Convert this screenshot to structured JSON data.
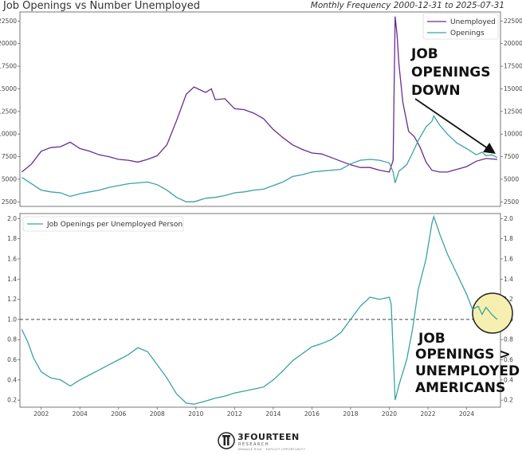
{
  "header": {
    "title": "Job Openings vs Number Unemployed",
    "subtitle": "Monthly Frequency 2000-12-31 to 2025-07-31"
  },
  "colors": {
    "unemployed": "#6b2c8e",
    "openings": "#3aa3a0",
    "ratio": "#3aa3a0",
    "highlight": "#f5f0b0",
    "highlight_stroke": "#222222"
  },
  "chart_data": [
    {
      "type": "line",
      "title": "Job Openings vs Number Unemployed",
      "xlim": [
        2000.9,
        2025.75
      ],
      "ylim": [
        2000,
        23500
      ],
      "yticks": [
        2500,
        5000,
        7500,
        10000,
        12500,
        15000,
        17500,
        20000,
        22500
      ],
      "legend_position": "top-right",
      "series": [
        {
          "name": "Unemployed",
          "points": [
            [
              2001.0,
              5800
            ],
            [
              2001.5,
              6700
            ],
            [
              2002.0,
              8100
            ],
            [
              2002.5,
              8500
            ],
            [
              2003.0,
              8600
            ],
            [
              2003.5,
              9100
            ],
            [
              2004.0,
              8400
            ],
            [
              2004.5,
              8100
            ],
            [
              2005.0,
              7700
            ],
            [
              2005.5,
              7500
            ],
            [
              2006.0,
              7200
            ],
            [
              2006.5,
              7100
            ],
            [
              2007.0,
              6900
            ],
            [
              2007.5,
              7200
            ],
            [
              2008.0,
              7600
            ],
            [
              2008.5,
              8800
            ],
            [
              2009.0,
              11500
            ],
            [
              2009.5,
              14400
            ],
            [
              2009.9,
              15200
            ],
            [
              2010.5,
              14600
            ],
            [
              2010.8,
              15000
            ],
            [
              2011.0,
              13800
            ],
            [
              2011.5,
              13900
            ],
            [
              2012.0,
              12800
            ],
            [
              2012.5,
              12700
            ],
            [
              2013.0,
              12300
            ],
            [
              2013.5,
              11700
            ],
            [
              2014.0,
              10500
            ],
            [
              2014.5,
              9600
            ],
            [
              2015.0,
              8800
            ],
            [
              2015.5,
              8300
            ],
            [
              2016.0,
              7900
            ],
            [
              2016.5,
              7800
            ],
            [
              2017.0,
              7400
            ],
            [
              2017.5,
              7000
            ],
            [
              2018.0,
              6600
            ],
            [
              2018.5,
              6300
            ],
            [
              2019.0,
              6300
            ],
            [
              2019.5,
              6000
            ],
            [
              2020.0,
              5800
            ],
            [
              2020.2,
              7100
            ],
            [
              2020.3,
              23000
            ],
            [
              2020.4,
              21000
            ],
            [
              2020.5,
              17700
            ],
            [
              2020.7,
              13500
            ],
            [
              2021.0,
              10300
            ],
            [
              2021.3,
              9700
            ],
            [
              2021.6,
              8500
            ],
            [
              2021.9,
              6900
            ],
            [
              2022.2,
              6000
            ],
            [
              2022.6,
              5800
            ],
            [
              2023.0,
              5800
            ],
            [
              2023.5,
              6100
            ],
            [
              2024.0,
              6400
            ],
            [
              2024.5,
              7000
            ],
            [
              2025.0,
              7300
            ],
            [
              2025.58,
              7200
            ]
          ]
        },
        {
          "name": "Openings",
          "points": [
            [
              2001.0,
              5200
            ],
            [
              2001.5,
              4500
            ],
            [
              2002.0,
              3800
            ],
            [
              2002.5,
              3600
            ],
            [
              2003.0,
              3500
            ],
            [
              2003.5,
              3100
            ],
            [
              2004.0,
              3400
            ],
            [
              2004.5,
              3600
            ],
            [
              2005.0,
              3800
            ],
            [
              2005.5,
              4100
            ],
            [
              2006.0,
              4300
            ],
            [
              2006.5,
              4500
            ],
            [
              2007.0,
              4600
            ],
            [
              2007.5,
              4700
            ],
            [
              2008.0,
              4400
            ],
            [
              2008.5,
              3800
            ],
            [
              2009.0,
              3000
            ],
            [
              2009.5,
              2500
            ],
            [
              2009.9,
              2500
            ],
            [
              2010.5,
              2900
            ],
            [
              2011.0,
              3000
            ],
            [
              2011.5,
              3200
            ],
            [
              2012.0,
              3500
            ],
            [
              2012.5,
              3600
            ],
            [
              2013.0,
              3800
            ],
            [
              2013.5,
              3900
            ],
            [
              2014.0,
              4300
            ],
            [
              2014.5,
              4700
            ],
            [
              2015.0,
              5300
            ],
            [
              2015.5,
              5500
            ],
            [
              2016.0,
              5800
            ],
            [
              2016.5,
              5900
            ],
            [
              2017.0,
              6000
            ],
            [
              2017.5,
              6100
            ],
            [
              2018.0,
              6700
            ],
            [
              2018.5,
              7100
            ],
            [
              2019.0,
              7200
            ],
            [
              2019.5,
              7100
            ],
            [
              2020.0,
              6800
            ],
            [
              2020.2,
              5800
            ],
            [
              2020.3,
              4600
            ],
            [
              2020.5,
              5900
            ],
            [
              2020.9,
              6600
            ],
            [
              2021.2,
              7900
            ],
            [
              2021.5,
              9300
            ],
            [
              2021.9,
              10800
            ],
            [
              2022.2,
              11400
            ],
            [
              2022.3,
              12000
            ],
            [
              2022.6,
              11000
            ],
            [
              2023.0,
              10000
            ],
            [
              2023.5,
              9000
            ],
            [
              2024.0,
              8400
            ],
            [
              2024.5,
              7700
            ],
            [
              2024.8,
              8000
            ],
            [
              2025.0,
              7600
            ],
            [
              2025.3,
              7700
            ],
            [
              2025.58,
              7400
            ]
          ]
        }
      ]
    },
    {
      "type": "line",
      "xlim": [
        2000.9,
        2025.75
      ],
      "ylim": [
        0.13,
        2.05
      ],
      "yticks": [
        0.2,
        0.4,
        0.6,
        0.8,
        1.0,
        1.2,
        1.4,
        1.6,
        1.8,
        2.0
      ],
      "xticks": [
        2002,
        2004,
        2006,
        2008,
        2010,
        2012,
        2014,
        2016,
        2018,
        2020,
        2022,
        2024
      ],
      "reference_line": 1.0,
      "legend_position": "top-left",
      "series": [
        {
          "name": "Job Openings per Unemployed Person",
          "points": [
            [
              2001.0,
              0.9
            ],
            [
              2001.3,
              0.78
            ],
            [
              2001.6,
              0.62
            ],
            [
              2002.0,
              0.48
            ],
            [
              2002.5,
              0.42
            ],
            [
              2003.0,
              0.4
            ],
            [
              2003.5,
              0.34
            ],
            [
              2004.0,
              0.4
            ],
            [
              2004.5,
              0.45
            ],
            [
              2005.0,
              0.5
            ],
            [
              2005.5,
              0.55
            ],
            [
              2006.0,
              0.6
            ],
            [
              2006.5,
              0.65
            ],
            [
              2007.0,
              0.72
            ],
            [
              2007.5,
              0.68
            ],
            [
              2008.0,
              0.55
            ],
            [
              2008.5,
              0.42
            ],
            [
              2009.0,
              0.26
            ],
            [
              2009.5,
              0.17
            ],
            [
              2009.9,
              0.16
            ],
            [
              2010.5,
              0.19
            ],
            [
              2011.0,
              0.22
            ],
            [
              2011.5,
              0.24
            ],
            [
              2012.0,
              0.27
            ],
            [
              2012.5,
              0.29
            ],
            [
              2013.0,
              0.31
            ],
            [
              2013.5,
              0.33
            ],
            [
              2014.0,
              0.4
            ],
            [
              2014.5,
              0.49
            ],
            [
              2015.0,
              0.59
            ],
            [
              2015.5,
              0.66
            ],
            [
              2016.0,
              0.73
            ],
            [
              2016.5,
              0.76
            ],
            [
              2017.0,
              0.8
            ],
            [
              2017.5,
              0.87
            ],
            [
              2018.0,
              1.0
            ],
            [
              2018.5,
              1.13
            ],
            [
              2019.0,
              1.22
            ],
            [
              2019.5,
              1.2
            ],
            [
              2020.0,
              1.22
            ],
            [
              2020.1,
              1.15
            ],
            [
              2020.3,
              0.2
            ],
            [
              2020.5,
              0.35
            ],
            [
              2020.9,
              0.6
            ],
            [
              2021.2,
              0.9
            ],
            [
              2021.5,
              1.3
            ],
            [
              2021.9,
              1.6
            ],
            [
              2022.2,
              1.95
            ],
            [
              2022.3,
              2.02
            ],
            [
              2022.6,
              1.85
            ],
            [
              2023.0,
              1.65
            ],
            [
              2023.5,
              1.45
            ],
            [
              2024.0,
              1.25
            ],
            [
              2024.3,
              1.1
            ],
            [
              2024.6,
              1.13
            ],
            [
              2024.8,
              1.05
            ],
            [
              2025.0,
              1.12
            ],
            [
              2025.3,
              1.05
            ],
            [
              2025.58,
              1.0
            ]
          ]
        }
      ]
    }
  ],
  "annotations": {
    "top": [
      "JOB",
      "OPENINGS",
      "DOWN"
    ],
    "bottom": [
      "JOB",
      "OPENINGS >",
      "UNEMPLOYED",
      "AMERICANS"
    ]
  },
  "logo": {
    "name": "3FOURTEEN",
    "sub": "RESEARCH",
    "tagline": "MANAGE RISK · EXPLOIT OPPORTUNITY"
  }
}
